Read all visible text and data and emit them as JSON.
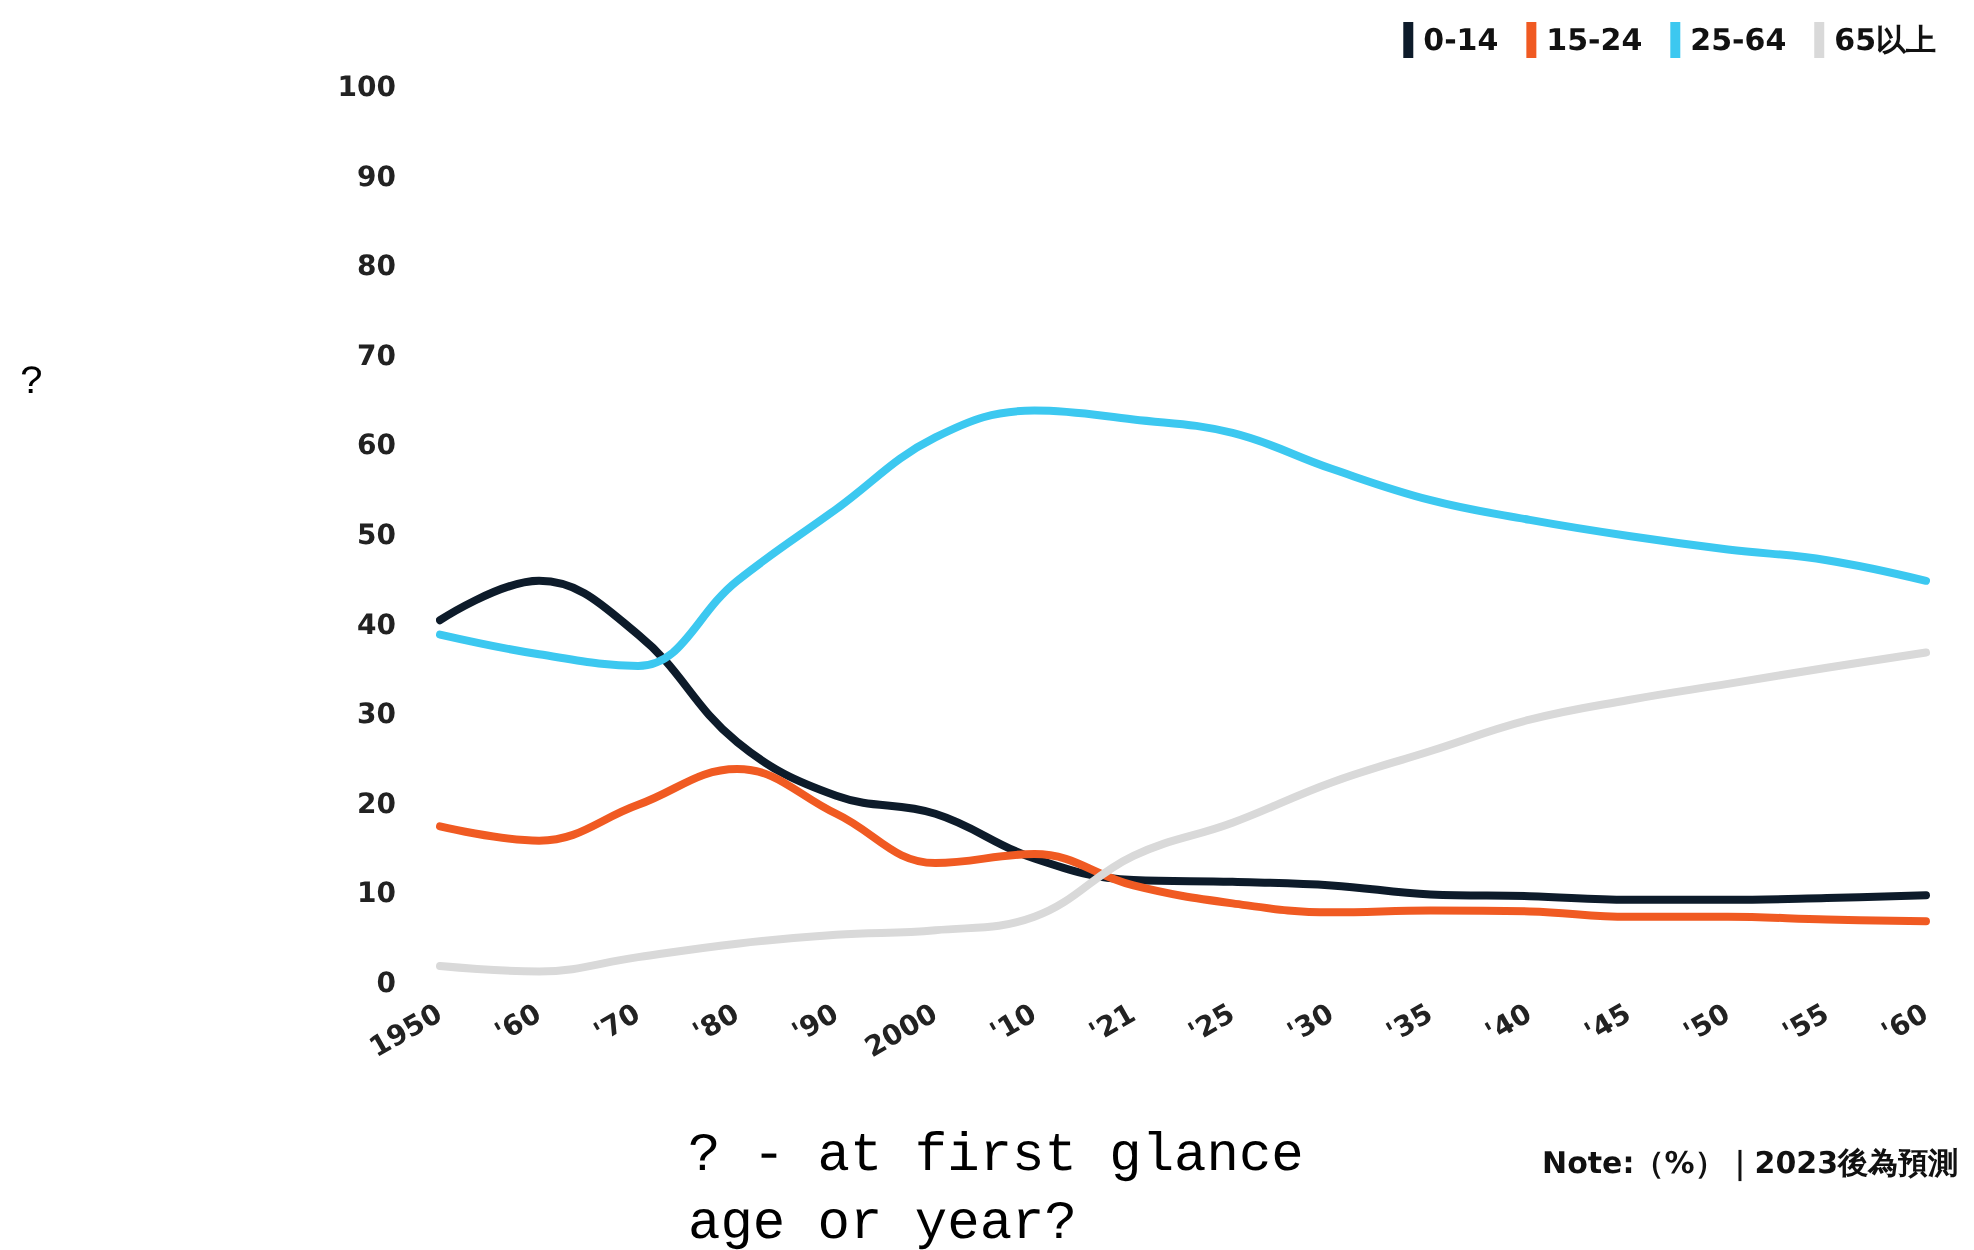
{
  "chart_data": {
    "type": "line",
    "categories": [
      "1950",
      "'60",
      "'70",
      "'80",
      "'90",
      "2000",
      "'10",
      "'21",
      "'25",
      "'30",
      "'35",
      "'40",
      "'45",
      "'50",
      "'55",
      "'60"
    ],
    "series": [
      {
        "name": "0-14",
        "color": "#0d1b2a",
        "values": [
          40.6,
          45,
          39,
          27,
          21,
          19,
          14,
          11.6,
          11.4,
          11,
          10,
          9.8,
          9.4,
          9.4,
          9.6,
          9.9
        ]
      },
      {
        "name": "15-24",
        "color": "#f05a22",
        "values": [
          17.6,
          16,
          20,
          24,
          19,
          13.5,
          14.5,
          11,
          9,
          8,
          8.2,
          8.1,
          7.5,
          7.5,
          7.2,
          7
        ]
      },
      {
        "name": "25-64",
        "color": "#3cc8f0",
        "values": [
          39,
          36.8,
          35.5,
          45,
          53,
          61,
          64,
          63,
          61.5,
          57.5,
          54,
          51.8,
          50,
          48.5,
          47.3,
          45
        ]
      },
      {
        "name": "65以上",
        "color": "#d9d9d9",
        "values": [
          2,
          1.4,
          3,
          4.5,
          5.5,
          6,
          7.5,
          14.3,
          18,
          22.5,
          26,
          29.5,
          31.7,
          33.5,
          35.3,
          37
        ]
      }
    ],
    "ylim": [
      0,
      100
    ],
    "yticks": [
      0,
      10,
      20,
      30,
      40,
      50,
      60,
      70,
      80,
      90,
      100
    ],
    "grid": false,
    "legend": "top right",
    "marker": "none",
    "line_style": "solid",
    "annotations": [
      "?",
      "? - at first glance\nage or year?",
      "Note:（%）｜2023後為預測"
    ]
  }
}
